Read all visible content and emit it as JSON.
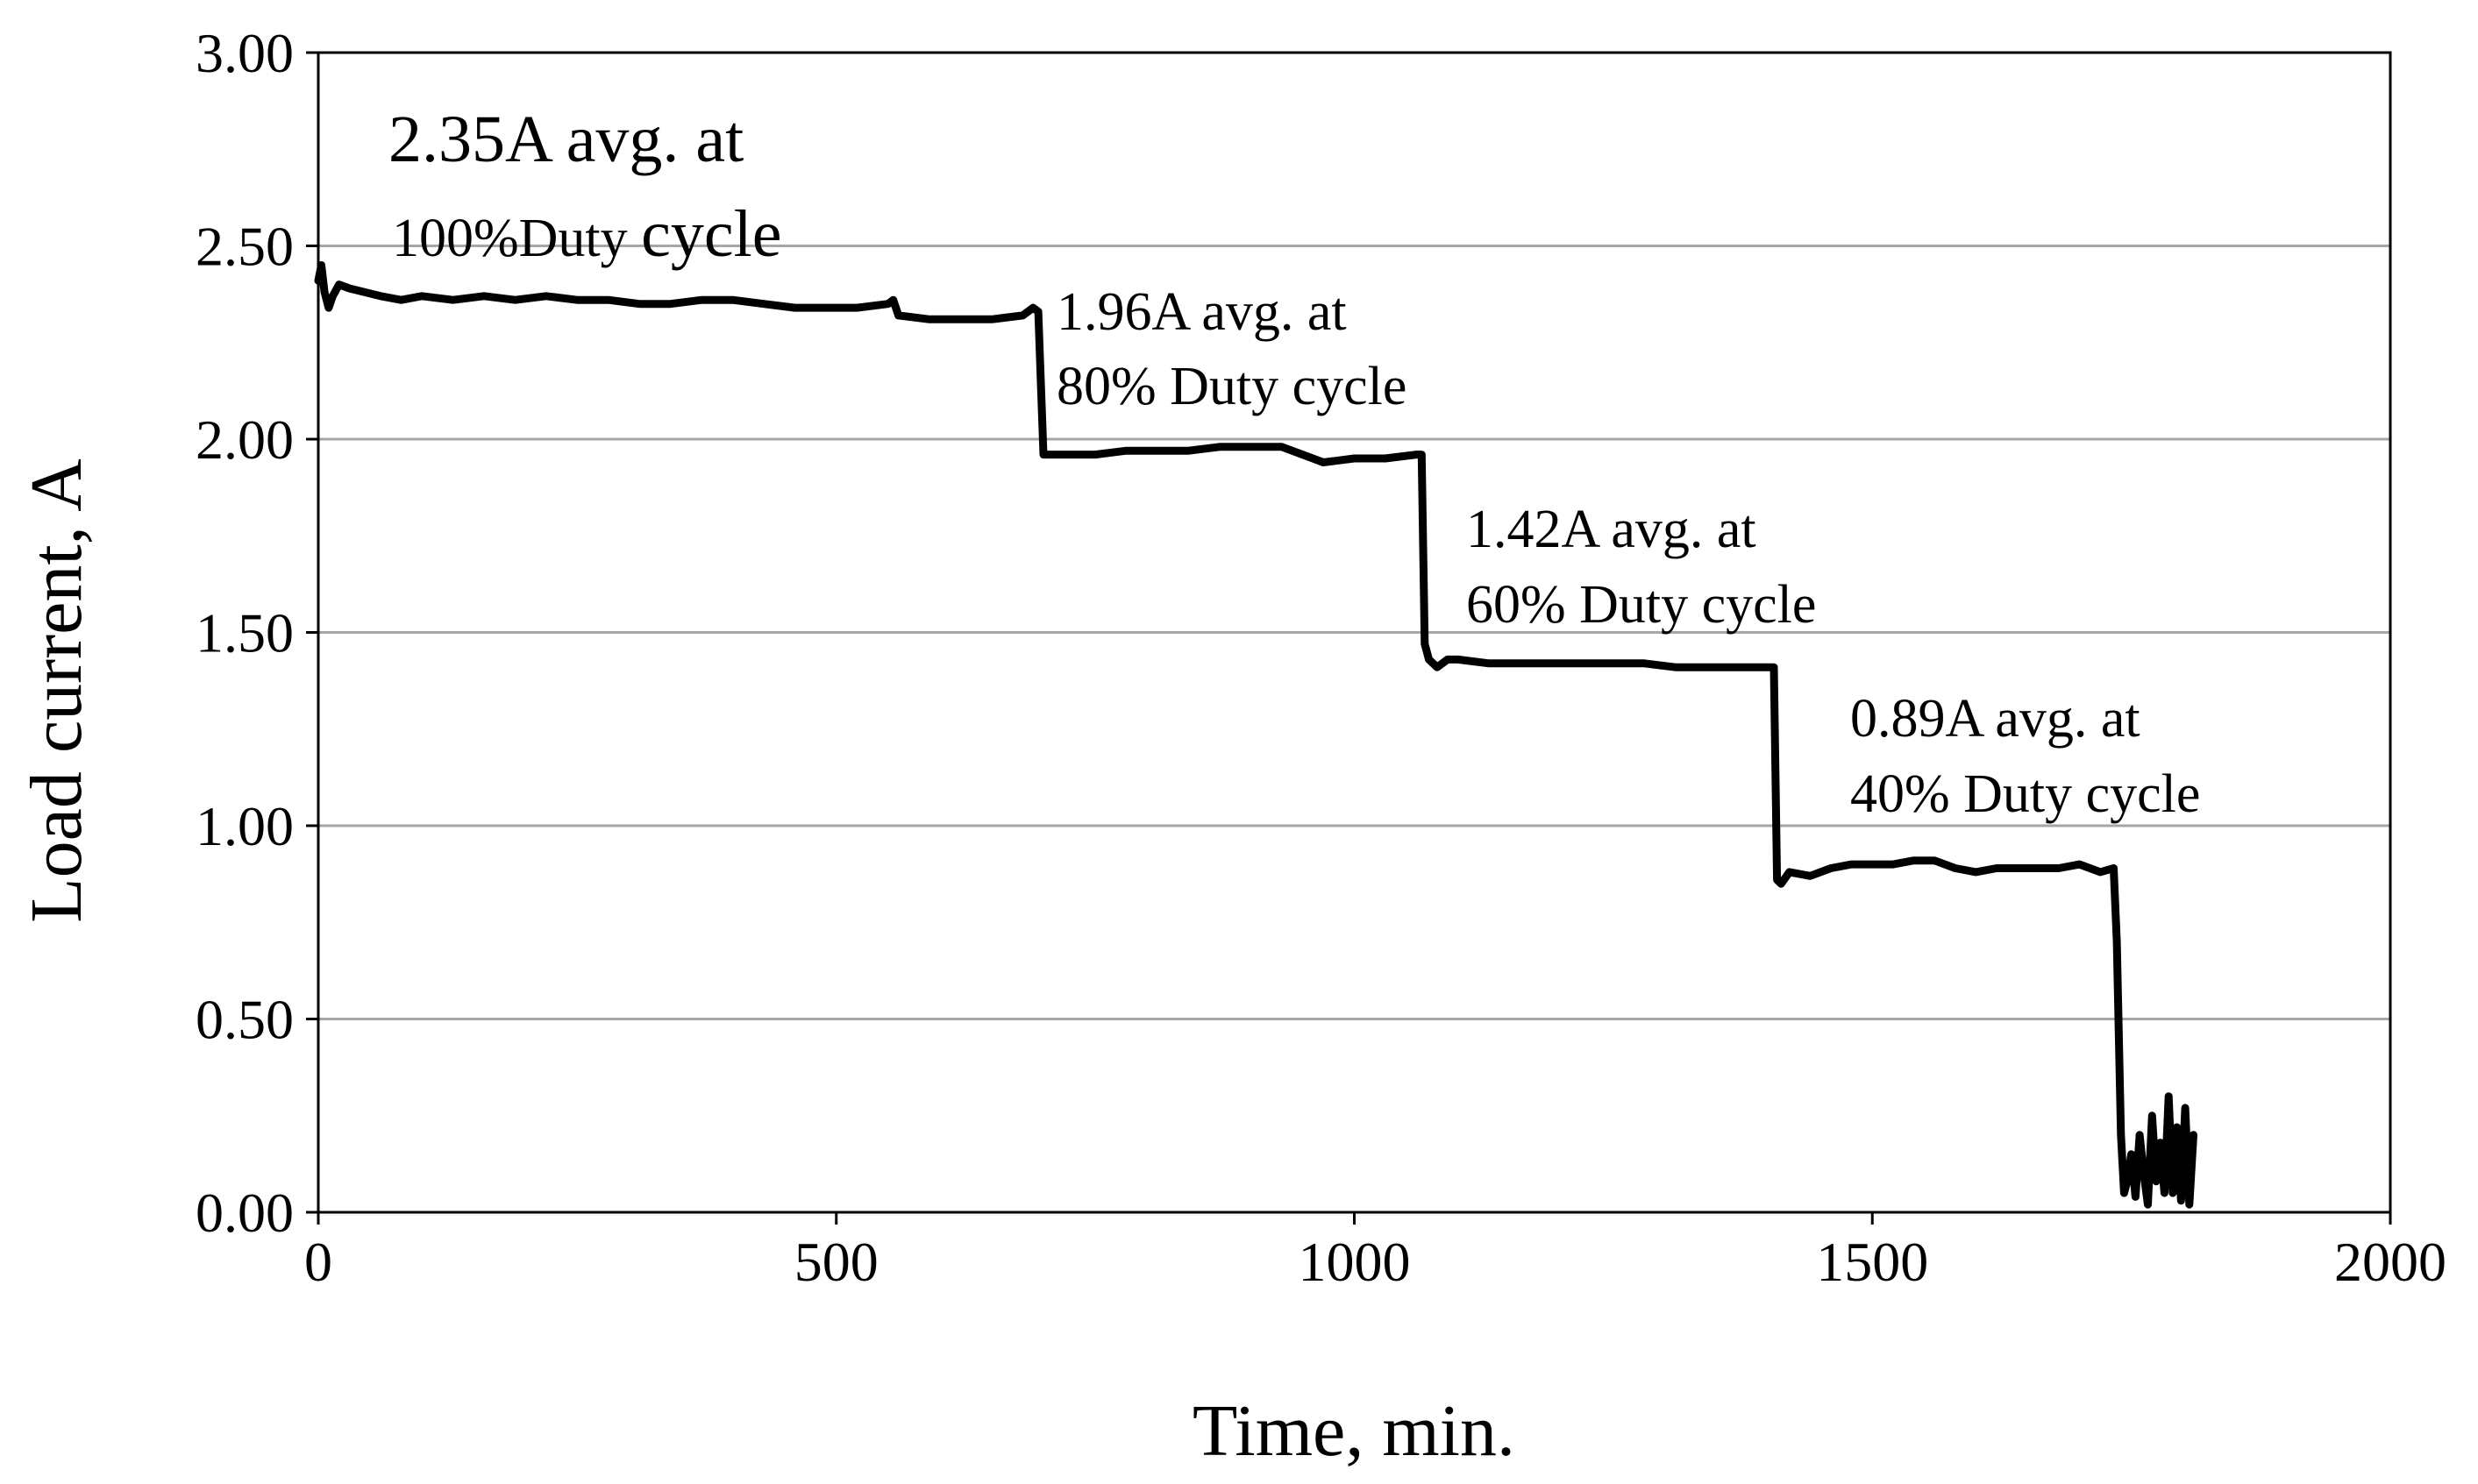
{
  "chart_data": {
    "type": "line",
    "title": "",
    "xlabel": "Time, min.",
    "ylabel": "Load current, A",
    "xlim": [
      0,
      2000
    ],
    "ylim": [
      0,
      3
    ],
    "x_ticks": [
      "0",
      "500",
      "1000",
      "1500",
      "2000"
    ],
    "x_tick_values": [
      0,
      500,
      1000,
      1500,
      2000
    ],
    "y_ticks": [
      "0.00",
      "0.50",
      "1.00",
      "1.50",
      "2.00",
      "2.50",
      "3.00"
    ],
    "y_tick_values": [
      0,
      0.5,
      1,
      1.5,
      2,
      2.5,
      3
    ],
    "grid": "horizontal",
    "series": [
      {
        "name": "Load current",
        "x": [
          0,
          3,
          6,
          10,
          14,
          20,
          30,
          45,
          60,
          80,
          100,
          130,
          160,
          190,
          220,
          250,
          280,
          310,
          340,
          370,
          400,
          430,
          460,
          490,
          520,
          550,
          555,
          560,
          590,
          620,
          650,
          680,
          690,
          695,
          700,
          720,
          750,
          780,
          810,
          840,
          870,
          900,
          930,
          960,
          970,
          1000,
          1030,
          1060,
          1065,
          1068,
          1072,
          1080,
          1090,
          1100,
          1130,
          1160,
          1190,
          1220,
          1250,
          1280,
          1310,
          1340,
          1370,
          1400,
          1405,
          1408,
          1412,
          1420,
          1440,
          1460,
          1480,
          1500,
          1520,
          1540,
          1560,
          1580,
          1600,
          1620,
          1640,
          1660,
          1680,
          1700,
          1720,
          1733,
          1736,
          1740,
          1743,
          1746,
          1750,
          1754,
          1758,
          1762,
          1766,
          1770,
          1774,
          1778,
          1782,
          1786,
          1790,
          1794,
          1798,
          1802,
          1806,
          1810
        ],
        "y": [
          2.41,
          2.45,
          2.38,
          2.34,
          2.37,
          2.4,
          2.39,
          2.38,
          2.37,
          2.36,
          2.37,
          2.36,
          2.37,
          2.36,
          2.37,
          2.36,
          2.36,
          2.35,
          2.35,
          2.36,
          2.36,
          2.35,
          2.34,
          2.34,
          2.34,
          2.35,
          2.36,
          2.32,
          2.31,
          2.31,
          2.31,
          2.32,
          2.34,
          2.33,
          1.96,
          1.96,
          1.96,
          1.97,
          1.97,
          1.97,
          1.98,
          1.98,
          1.98,
          1.95,
          1.94,
          1.95,
          1.95,
          1.96,
          1.96,
          1.47,
          1.43,
          1.41,
          1.43,
          1.43,
          1.42,
          1.42,
          1.42,
          1.42,
          1.42,
          1.42,
          1.41,
          1.41,
          1.41,
          1.41,
          1.41,
          0.86,
          0.85,
          0.88,
          0.87,
          0.89,
          0.9,
          0.9,
          0.9,
          0.91,
          0.91,
          0.89,
          0.88,
          0.89,
          0.89,
          0.89,
          0.89,
          0.9,
          0.88,
          0.89,
          0.7,
          0.2,
          0.05,
          0.08,
          0.15,
          0.04,
          0.2,
          0.1,
          0.02,
          0.25,
          0.08,
          0.18,
          0.05,
          0.3,
          0.05,
          0.22,
          0.03,
          0.27,
          0.02,
          0.2
        ]
      }
    ],
    "annotations": [
      {
        "id": "a100",
        "line1": "2.35A avg. at",
        "line2a": "100%Duty ",
        "line2b": "cycle"
      },
      {
        "id": "a80",
        "line1": "1.96A avg. at",
        "line2": "80% Duty cycle"
      },
      {
        "id": "a60",
        "line1": "1.42A avg. at",
        "line2": "60% Duty cycle"
      },
      {
        "id": "a40",
        "line1": "0.89A avg. at",
        "line2": "40% Duty cycle"
      }
    ],
    "line_color": "#000000",
    "grid_color": "#a6a6a6"
  }
}
